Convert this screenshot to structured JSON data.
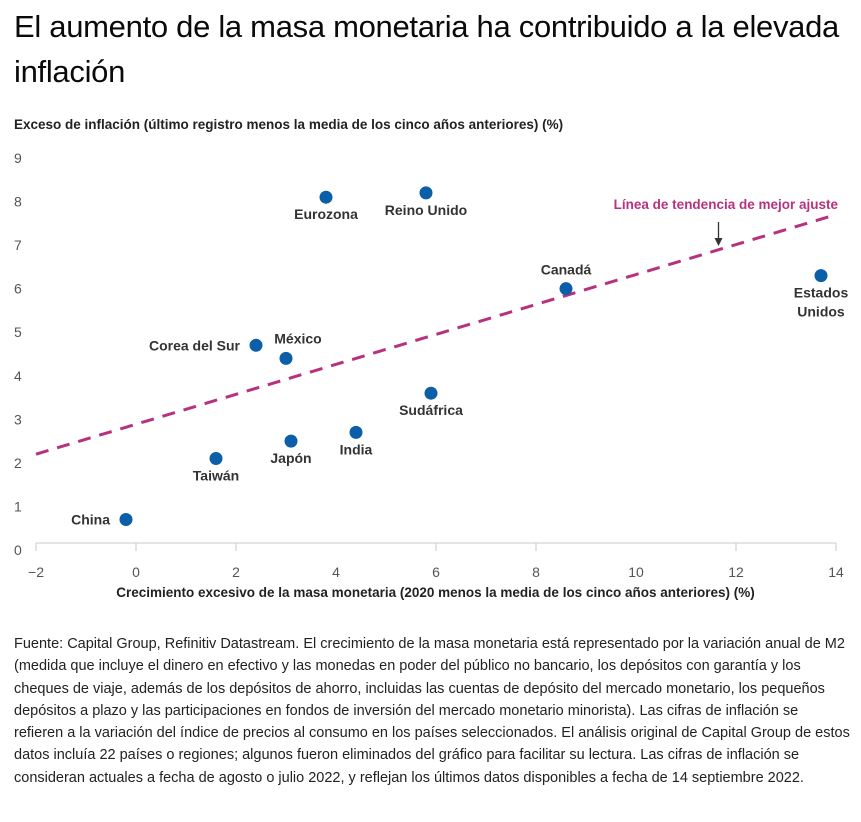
{
  "title": "El aumento de la masa monetaria ha contribuido a la elevada inflación",
  "footnote": "Fuente: Capital Group, Refinitiv Datastream. El crecimiento de la masa monetaria está representado por la variación anual de M2 (medida que incluye el dinero en efectivo y las monedas en poder del público no bancario, los depósitos con garantía y los cheques de viaje, además de los depósitos de ahorro, incluidas las cuentas de depósito del mercado monetario, los pequeños depósitos a plazo y las participaciones en fondos de inversión del mercado monetario minorista). Las cifras de inflación se refieren a la variación del índice de precios al consumo en los países seleccionados. El análisis original de Capital Group de estos datos incluía 22 países o regiones; algunos fueron eliminados del gráfico para facilitar su lectura. Las cifras de inflación se consideran actuales a fecha de agosto o julio 2022, y reflejan los últimos datos disponibles a fecha de 14 septiembre 2022.",
  "colors": {
    "point": "#0b5ea8",
    "trend": "#b8317f",
    "axis": "#c8c8c8",
    "tick_label": "#555555",
    "point_label": "#333333",
    "arrow": "#333333"
  },
  "chart_data": {
    "type": "scatter",
    "title": "El aumento de la masa monetaria ha contribuido a la elevada inflación",
    "xlabel": "Crecimiento excesivo de la masa monetaria (2020 menos la media de los cinco años anteriores) (%)",
    "ylabel": "Exceso de inflación (último registro menos la media de los cinco años anteriores) (%)",
    "xlim": [
      -2,
      14
    ],
    "ylim": [
      0,
      9
    ],
    "x_ticks": [
      -2,
      0,
      2,
      4,
      6,
      8,
      10,
      12,
      14
    ],
    "x_tick_marks": [
      -2,
      0,
      2,
      6,
      8,
      12,
      14
    ],
    "y_ticks": [
      0,
      1,
      2,
      3,
      4,
      5,
      6,
      7,
      8,
      9
    ],
    "grid": false,
    "legend": "none",
    "points": [
      {
        "label": "China",
        "x": -0.2,
        "y": 0.7,
        "label_pos": "left"
      },
      {
        "label": "Taiwán",
        "x": 1.6,
        "y": 2.1,
        "label_pos": "below"
      },
      {
        "label": "Corea del Sur",
        "x": 2.4,
        "y": 4.7,
        "label_pos": "left"
      },
      {
        "label": "México",
        "x": 3.0,
        "y": 4.4,
        "label_pos": "above-right"
      },
      {
        "label": "Japón",
        "x": 3.1,
        "y": 2.5,
        "label_pos": "below"
      },
      {
        "label": "Eurozona",
        "x": 3.8,
        "y": 8.1,
        "label_pos": "below"
      },
      {
        "label": "India",
        "x": 4.4,
        "y": 2.7,
        "label_pos": "below"
      },
      {
        "label": "Reino Unido",
        "x": 5.8,
        "y": 8.2,
        "label_pos": "below"
      },
      {
        "label": "Sudáfrica",
        "x": 5.9,
        "y": 3.6,
        "label_pos": "below"
      },
      {
        "label": "Canadá",
        "x": 8.6,
        "y": 6.0,
        "label_pos": "above"
      },
      {
        "label": "Estados Unidos",
        "x": 13.7,
        "y": 6.3,
        "label_pos": "below",
        "label_lines": [
          "Estados",
          "Unidos"
        ]
      }
    ],
    "trendline": {
      "label": "Línea de tendencia de mejor ajuste",
      "from": {
        "x": -2,
        "y": 2.2
      },
      "to": {
        "x": 14,
        "y": 7.7
      },
      "style": "dashed",
      "arrow_at_x": 11.65
    }
  }
}
